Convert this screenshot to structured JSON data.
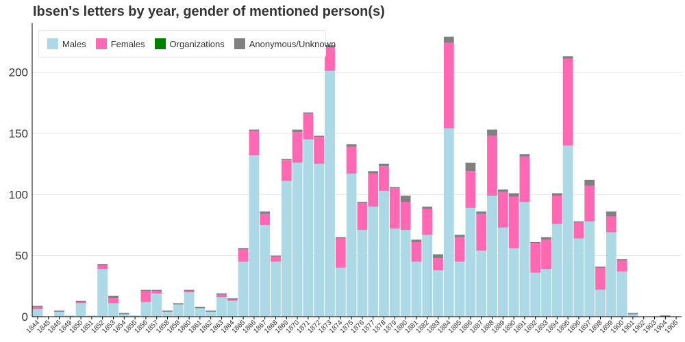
{
  "chart_data": {
    "type": "bar",
    "stacked": true,
    "title": "Ibsen's letters by year, gender of mentioned person(s)",
    "xlabel": "",
    "ylabel": "",
    "ylim": [
      0,
      240
    ],
    "yticks": [
      0,
      50,
      100,
      150,
      200
    ],
    "grid": "horizontal",
    "legend_position": "top-left",
    "categories": [
      "1844",
      "1845",
      "1846",
      "1849",
      "1850",
      "1851",
      "1852",
      "1853",
      "1854",
      "1855",
      "1856",
      "1857",
      "1858",
      "1859",
      "1860",
      "1861",
      "1862",
      "1863",
      "1864",
      "1865",
      "1866",
      "1867",
      "1868",
      "1869",
      "1870",
      "1871",
      "1872",
      "1873",
      "1874",
      "1875",
      "1876",
      "1877",
      "1878",
      "1879",
      "1880",
      "1881",
      "1882",
      "1883",
      "1884",
      "1885",
      "1886",
      "1887",
      "1888",
      "1889",
      "1890",
      "1891",
      "1892",
      "1893",
      "1894",
      "1895",
      "1896",
      "1897",
      "1898",
      "1899",
      "1900",
      "1901",
      "1902",
      "1903",
      "1904",
      "1905"
    ],
    "series": [
      {
        "name": "Males",
        "color": "#add8e6",
        "values": [
          6,
          0,
          4,
          1,
          11,
          1,
          39,
          11,
          2,
          1,
          12,
          19,
          4,
          10,
          20,
          7,
          4,
          16,
          13,
          45,
          132,
          75,
          45,
          111,
          126,
          145,
          125,
          201,
          40,
          117,
          71,
          90,
          103,
          72,
          71,
          45,
          67,
          38,
          154,
          45,
          89,
          54,
          99,
          73,
          56,
          94,
          36,
          39,
          76,
          140,
          64,
          78,
          22,
          69,
          37,
          2,
          0,
          0,
          0,
          0
        ]
      },
      {
        "name": "Females",
        "color": "#ff69b4",
        "values": [
          2,
          0,
          0,
          0,
          1,
          0,
          3,
          4,
          0,
          0,
          9,
          2,
          0,
          0,
          1,
          0,
          0,
          2,
          1,
          10,
          20,
          9,
          4,
          17,
          25,
          21,
          22,
          19,
          24,
          22,
          22,
          27,
          20,
          33,
          23,
          16,
          21,
          10,
          70,
          20,
          30,
          30,
          49,
          29,
          42,
          37,
          24,
          24,
          23,
          71,
          13,
          29,
          18,
          13,
          9,
          0,
          0,
          0,
          0,
          0
        ]
      },
      {
        "name": "Organizations",
        "color": "#008000",
        "values": [
          0,
          0,
          0,
          0,
          0,
          0,
          0,
          0,
          0,
          0,
          0,
          0,
          0,
          0,
          0,
          0,
          0,
          0,
          0,
          0,
          0,
          0,
          0,
          0,
          0,
          0,
          0,
          0,
          0,
          0,
          0,
          0,
          0,
          0,
          0,
          0,
          0,
          0,
          0,
          0,
          0,
          0,
          0,
          0,
          0,
          0,
          0,
          0,
          0,
          0,
          0,
          0,
          0,
          0,
          0,
          0,
          0,
          0,
          0,
          0
        ]
      },
      {
        "name": "Anonymous/Unknown",
        "color": "#808080",
        "values": [
          1,
          0,
          1,
          0,
          1,
          0,
          1,
          2,
          1,
          0,
          1,
          1,
          1,
          1,
          1,
          1,
          1,
          1,
          1,
          1,
          1,
          2,
          1,
          1,
          2,
          1,
          1,
          2,
          1,
          2,
          1,
          2,
          2,
          1,
          5,
          2,
          2,
          3,
          5,
          2,
          7,
          2,
          5,
          2,
          3,
          2,
          1,
          2,
          2,
          2,
          1,
          5,
          1,
          4,
          1,
          1,
          0,
          0,
          1,
          0
        ]
      }
    ]
  }
}
